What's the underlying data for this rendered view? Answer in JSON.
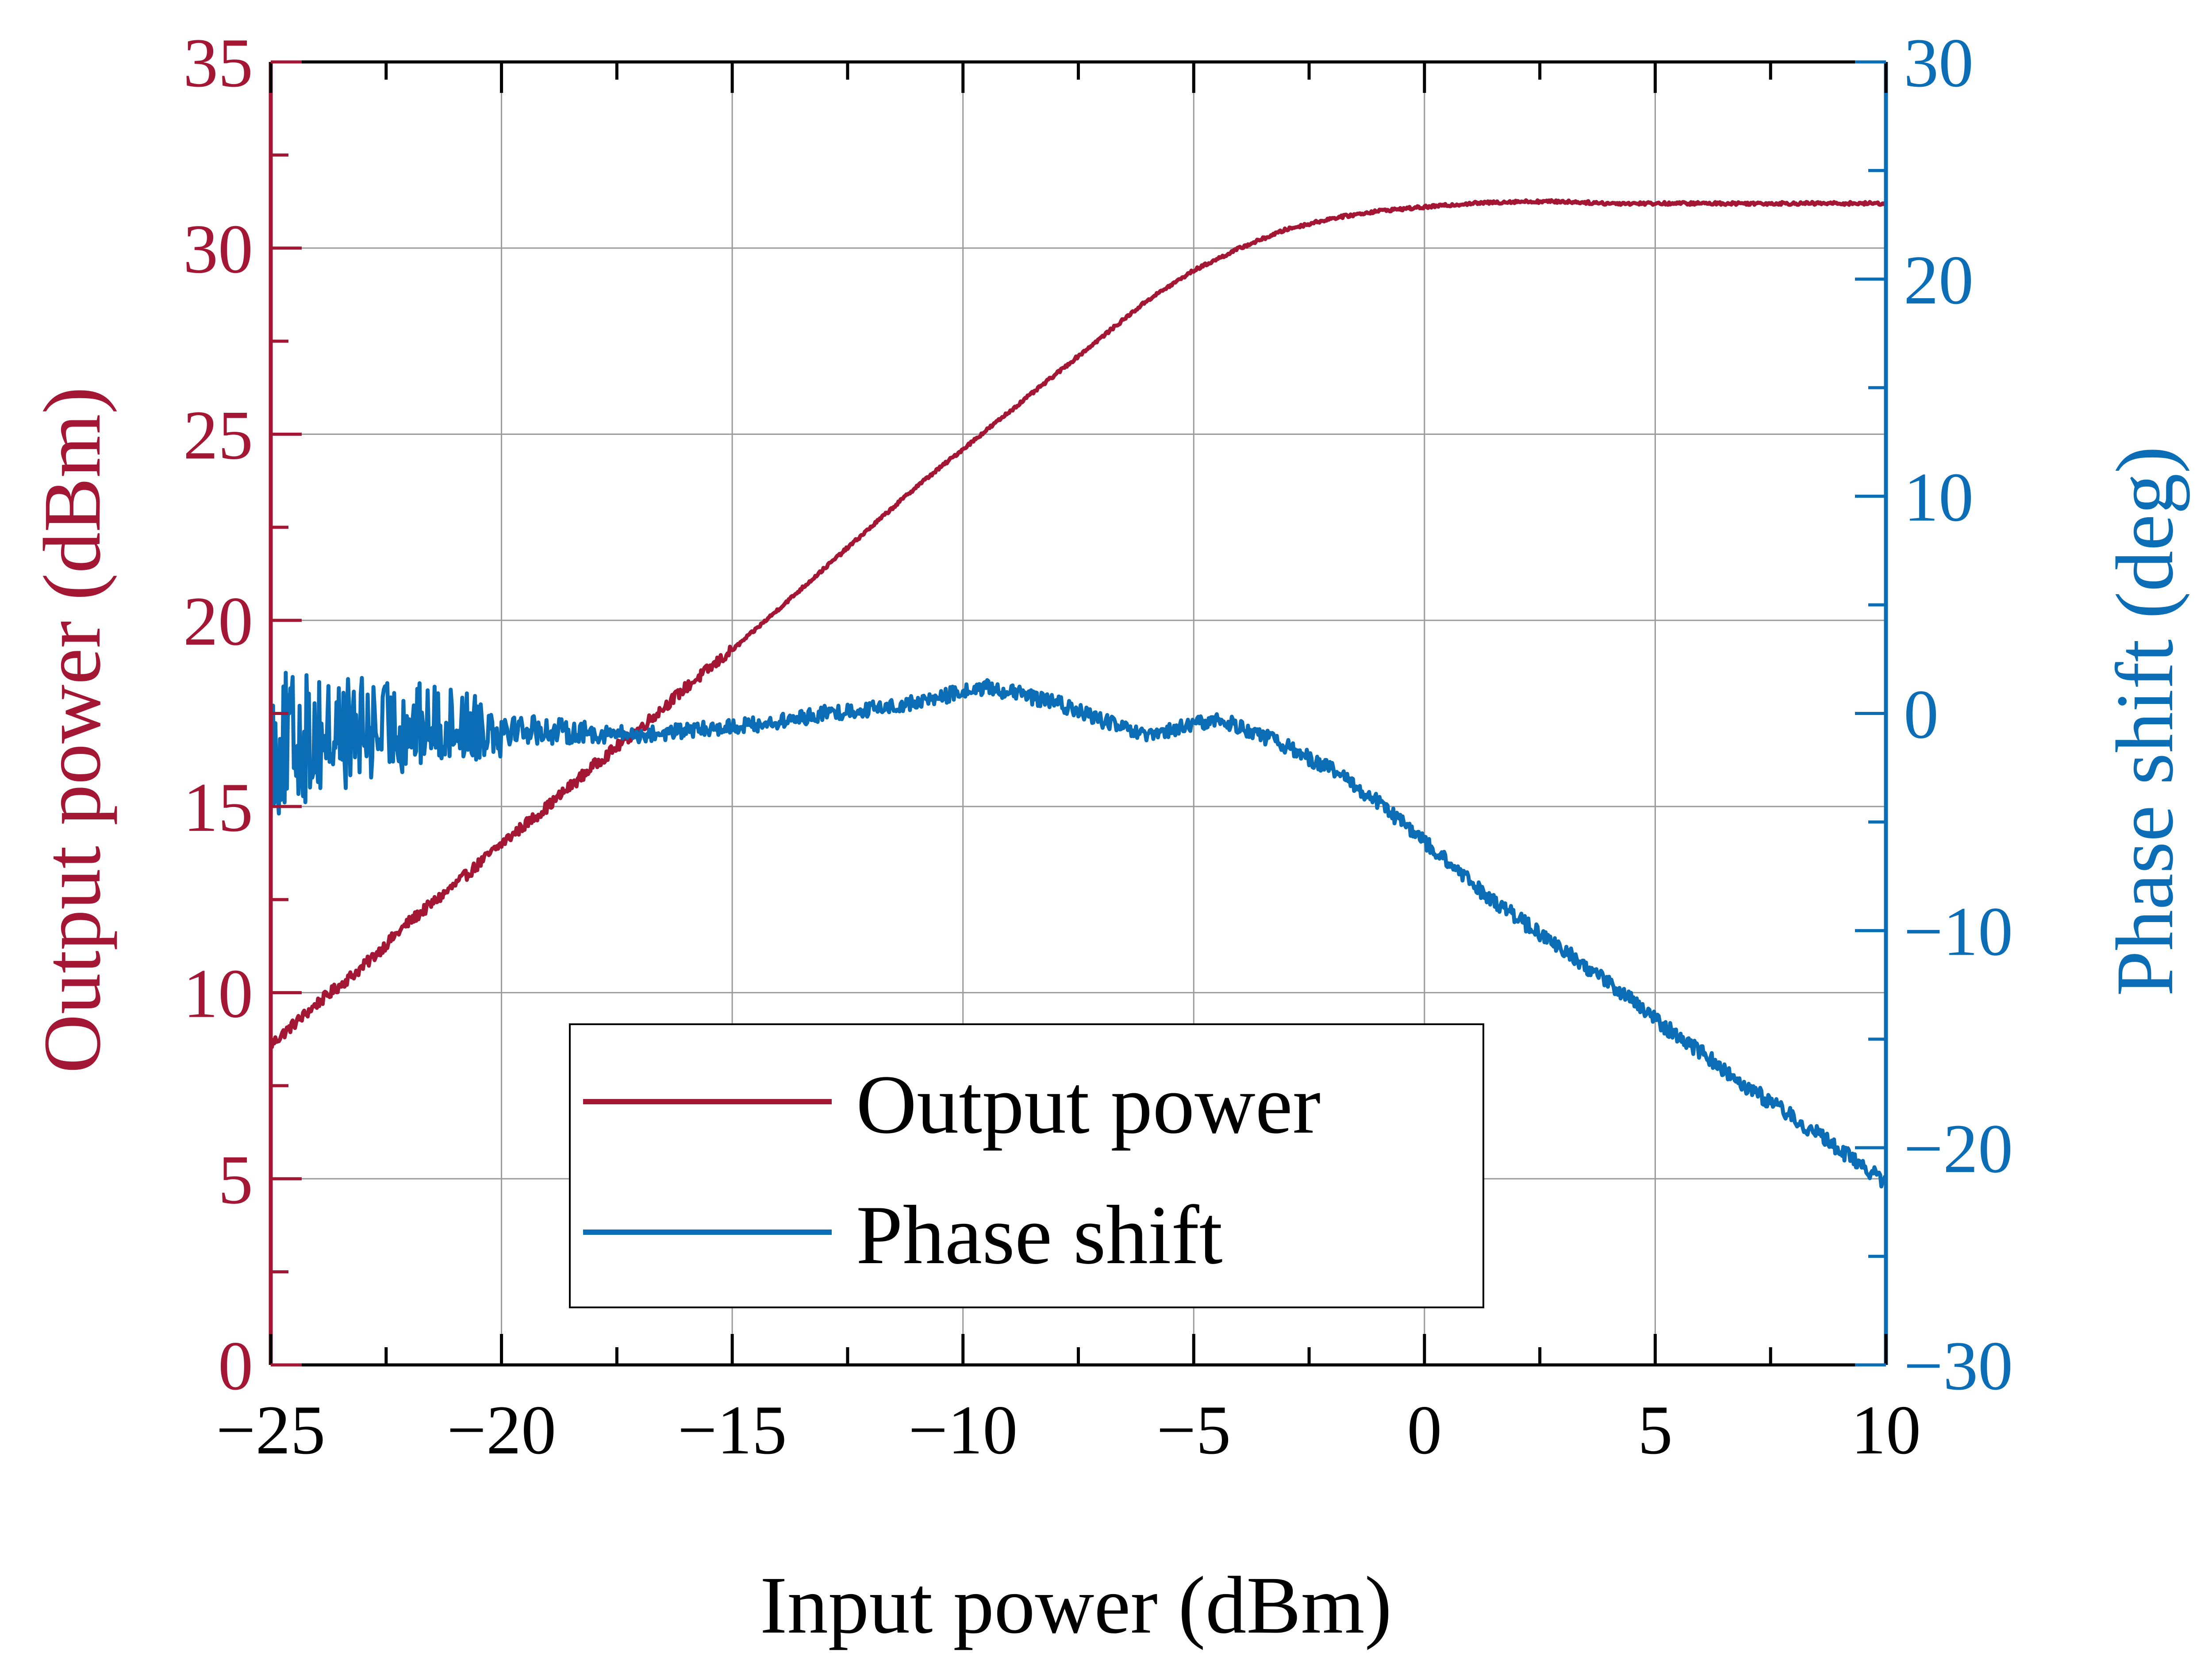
{
  "chart_data": {
    "type": "line",
    "xlabel": "Input power (dBm)",
    "ylabel_left": "Output power (dBm)",
    "ylabel_right": "Phase shift (deg)",
    "xlim": [
      -25,
      10
    ],
    "ylim_left": [
      0,
      35
    ],
    "ylim_right": [
      -30,
      30
    ],
    "grid": true,
    "legend_position": "bottom-center",
    "x_ticks": [
      -25,
      -20,
      -15,
      -10,
      -5,
      0,
      5,
      10
    ],
    "x_tick_labels": [
      "−25",
      "−20",
      "−15",
      "−10",
      "−5",
      "0",
      "5",
      "10"
    ],
    "y_left_ticks": [
      0,
      5,
      10,
      15,
      20,
      25,
      30,
      35
    ],
    "y_left_tick_labels": [
      "0",
      "5",
      "10",
      "15",
      "20",
      "25",
      "30",
      "35"
    ],
    "y_right_ticks": [
      -30,
      -20,
      -10,
      0,
      10,
      20,
      30
    ],
    "y_right_tick_labels": [
      "−30",
      "−20",
      "−10",
      "0",
      "10",
      "20",
      "30"
    ],
    "series": [
      {
        "name": "Output power",
        "axis": "left",
        "color": "#A31734",
        "noise": 0.15,
        "x": [
          -25,
          -24,
          -23,
          -22,
          -21,
          -20,
          -19,
          -18,
          -17,
          -16,
          -15,
          -14,
          -13,
          -12,
          -11,
          -10,
          -9,
          -8,
          -7,
          -6,
          -5,
          -4,
          -3,
          -2,
          -1,
          0,
          1,
          2,
          3,
          4,
          5,
          6,
          7,
          8,
          9,
          10
        ],
        "values": [
          8.6,
          9.7,
          10.7,
          11.9,
          12.9,
          14.0,
          15.0,
          16.1,
          17.1,
          18.2,
          19.2,
          20.3,
          21.4,
          22.5,
          23.6,
          24.6,
          25.6,
          26.6,
          27.6,
          28.6,
          29.4,
          30.0,
          30.5,
          30.8,
          31.0,
          31.1,
          31.2,
          31.25,
          31.25,
          31.2,
          31.2,
          31.2,
          31.2,
          31.2,
          31.2,
          31.2
        ]
      },
      {
        "name": "Phase shift",
        "axis": "right",
        "color": "#0A6DB5",
        "noise": 2.5,
        "x": [
          -25,
          -24,
          -23,
          -22,
          -21,
          -20,
          -19,
          -18,
          -17,
          -16,
          -15,
          -14,
          -13,
          -12,
          -11,
          -10,
          -9.5,
          -9,
          -8,
          -7,
          -6,
          -5,
          -4.5,
          -4,
          -3,
          -2,
          -1,
          0,
          1,
          2,
          3,
          4,
          5,
          6,
          7,
          8,
          9,
          10
        ],
        "values": [
          -1.5,
          -1.0,
          -0.8,
          -0.6,
          -0.5,
          -0.6,
          -0.8,
          -0.9,
          -1.0,
          -0.8,
          -0.6,
          -0.4,
          0,
          0.2,
          0.5,
          1.0,
          1.2,
          1.0,
          0.5,
          -0.3,
          -1.1,
          -0.5,
          -0.3,
          -0.6,
          -1.5,
          -2.6,
          -4.1,
          -5.9,
          -7.8,
          -9.4,
          -10.9,
          -12.4,
          -14.1,
          -15.6,
          -17.2,
          -18.6,
          -20.1,
          -21.6
        ]
      }
    ]
  }
}
